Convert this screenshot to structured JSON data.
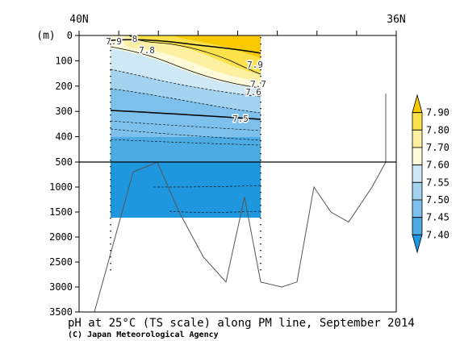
{
  "chart_data": {
    "type": "contour",
    "title": "pH at 25°C (TS scale) along PM line, September 2014",
    "credit": "(C) Japan Meteorological Agency",
    "x_left_label": "40N",
    "x_right_label": "36N",
    "ylabel": "(m)",
    "y_ticks_upper": [
      "0",
      "100",
      "200",
      "300",
      "400",
      "500"
    ],
    "y_ticks_lower": [
      "1000",
      "1500",
      "2000",
      "2500",
      "3000",
      "3500"
    ],
    "ylim_upper": [
      0,
      500
    ],
    "ylim_lower": [
      500,
      3500
    ],
    "colorbar": {
      "levels": [
        "7.90",
        "7.80",
        "7.70",
        "7.60",
        "7.55",
        "7.50",
        "7.45",
        "7.40"
      ],
      "colors": [
        "#f9c900",
        "#fbe14a",
        "#fdf0a0",
        "#fffbd8",
        "#cfe8f5",
        "#a4d3f0",
        "#7cc0eb",
        "#4dabe4",
        "#1f97de"
      ]
    },
    "contour_labels": [
      "7.9",
      "8",
      "7.8",
      "7.9",
      "7.7",
      "7.6",
      "7.5"
    ],
    "band_colors": [
      "#f9c900",
      "#fbe14a",
      "#fdf0a0",
      "#fffbd8",
      "#cfe8f5",
      "#a4d3f0",
      "#7cc0eb",
      "#4dabe4",
      "#1f97de"
    ],
    "bathymetry_depths_m": [
      3500,
      700,
      500,
      1500,
      2400,
      2900,
      1200,
      2900,
      3000,
      2900,
      1000,
      1500,
      1700,
      1000,
      500,
      230
    ]
  }
}
